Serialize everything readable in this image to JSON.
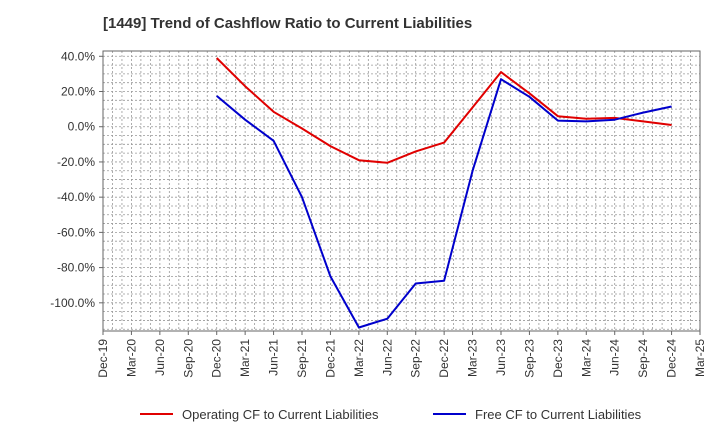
{
  "chart_data": {
    "type": "line",
    "title": "[1449]  Trend of Cashflow Ratio to Current Liabilities",
    "xlabel": "",
    "ylabel": "",
    "x": [
      "Dec-19",
      "Mar-20",
      "Jun-20",
      "Sep-20",
      "Dec-20",
      "Mar-21",
      "Jun-21",
      "Sep-21",
      "Dec-21",
      "Mar-22",
      "Jun-22",
      "Sep-22",
      "Dec-22",
      "Mar-23",
      "Jun-23",
      "Sep-23",
      "Dec-23",
      "Mar-24",
      "Jun-24",
      "Sep-24",
      "Dec-24",
      "Mar-25"
    ],
    "y_ticks": [
      40,
      20,
      0,
      -20,
      -40,
      -60,
      -80,
      -100
    ],
    "y_tick_labels": [
      "40.0%",
      "20.0%",
      "0.0%",
      "-20.0%",
      "-40.0%",
      "-60.0%",
      "-80.0%",
      "-100.0%"
    ],
    "ylim": [
      -116,
      43
    ],
    "grid": true,
    "legend_position": "bottom",
    "series": [
      {
        "name": "Operating CF to Current Liabilities",
        "color": "#e00000",
        "values": [
          null,
          null,
          null,
          null,
          39.0,
          23.0,
          8.5,
          -1.0,
          -11.0,
          -19.0,
          -20.5,
          -14.0,
          -9.0,
          11.0,
          31.0,
          19.0,
          6.0,
          4.5,
          5.0,
          3.0,
          1.0,
          null
        ]
      },
      {
        "name": "Free CF to Current Liabilities",
        "color": "#0000cc",
        "values": [
          null,
          null,
          null,
          null,
          17.5,
          4.0,
          -8.0,
          -40.0,
          -85.0,
          -114.0,
          -109.0,
          -89.0,
          -87.5,
          -25.0,
          27.0,
          17.0,
          3.5,
          3.0,
          4.0,
          8.0,
          11.5,
          null
        ]
      }
    ]
  }
}
